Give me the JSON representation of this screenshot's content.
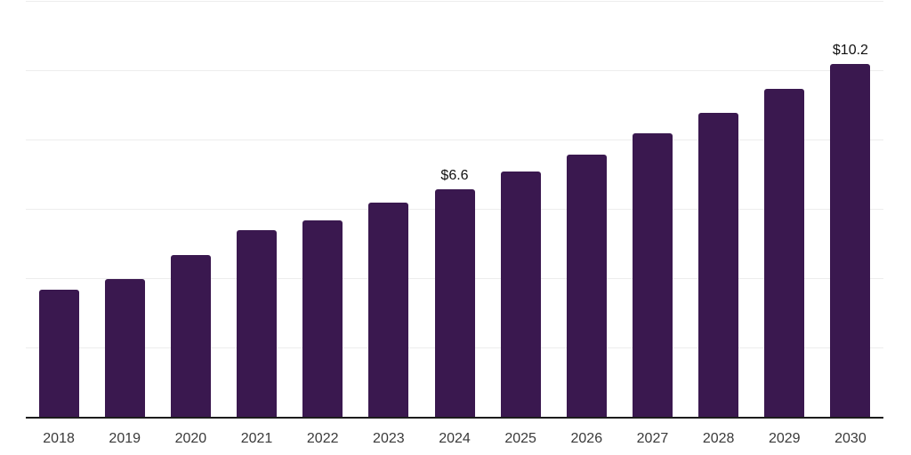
{
  "chart_data": {
    "type": "bar",
    "title": "",
    "xlabel": "",
    "ylabel": "",
    "categories": [
      "2018",
      "2019",
      "2020",
      "2021",
      "2022",
      "2023",
      "2024",
      "2025",
      "2026",
      "2027",
      "2028",
      "2029",
      "2030"
    ],
    "values": [
      3.7,
      4.0,
      4.7,
      5.4,
      5.7,
      6.2,
      6.6,
      7.1,
      7.6,
      8.2,
      8.8,
      9.5,
      10.2
    ],
    "data_labels": {
      "2024": "$6.6",
      "2030": "$10.2"
    },
    "ylim": [
      0,
      12
    ],
    "gridline_step": 2,
    "grid": "horizontal-only",
    "legend_position": "none",
    "y_tick_labels_visible": false,
    "colors": {
      "bar": "#3A184F",
      "axis_line": "#1c1c1c",
      "gridline": "#ededed",
      "tick_label": "#3a3a3a",
      "data_label": "#111111",
      "background": "#ffffff"
    }
  }
}
